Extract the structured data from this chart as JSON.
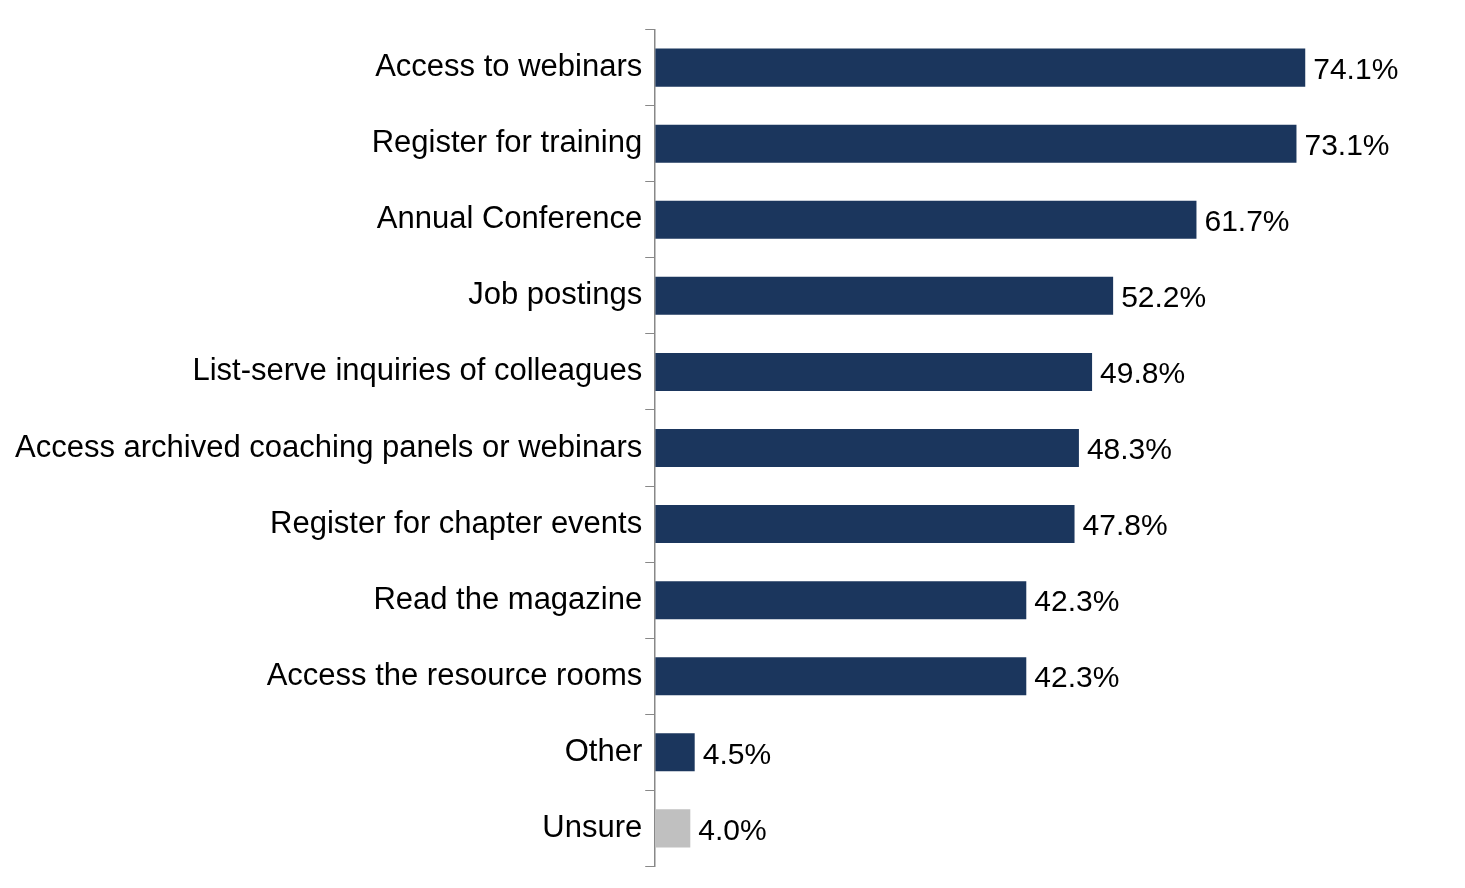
{
  "chart_data": {
    "type": "bar",
    "orientation": "horizontal",
    "value_labels": [
      "74.1%",
      "73.1%",
      "61.7%",
      "52.2%",
      "49.8%",
      "48.3%",
      "47.8%",
      "42.3%",
      "42.3%",
      "4.5%",
      "4.0%"
    ],
    "categories": [
      "Access to webinars",
      "Register for training",
      "Annual Conference",
      "Job postings",
      "List-serve inquiries of colleagues",
      "Access archived coaching panels or webinars",
      "Register for chapter events",
      "Read the magazine",
      "Access the resource rooms",
      "Other",
      "Unsure"
    ],
    "values": [
      74.1,
      73.1,
      61.7,
      52.2,
      49.8,
      48.3,
      47.8,
      42.3,
      42.3,
      4.5,
      4.0
    ],
    "colors": [
      "#1b365d",
      "#1b365d",
      "#1b365d",
      "#1b365d",
      "#1b365d",
      "#1b365d",
      "#1b365d",
      "#1b365d",
      "#1b365d",
      "#1b365d",
      "#c0c0c0"
    ]
  }
}
